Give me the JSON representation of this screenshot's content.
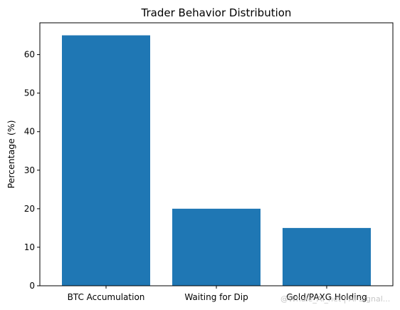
{
  "chart_data": {
    "type": "bar",
    "title": "Trader Behavior Distribution",
    "xlabel": "",
    "ylabel": "Percentage (%)",
    "categories": [
      "BTC Accumulation",
      "Waiting for Dip",
      "Gold/PAXG Holding"
    ],
    "values": [
      65,
      20,
      15
    ],
    "ylim": [
      0,
      68.25
    ],
    "yticks": [
      0,
      10,
      20,
      30,
      40,
      50,
      60
    ],
    "grid": false,
    "bar_color": "#1f77b4"
  },
  "watermark": "@Whale_AI_net | Ai Signal..."
}
